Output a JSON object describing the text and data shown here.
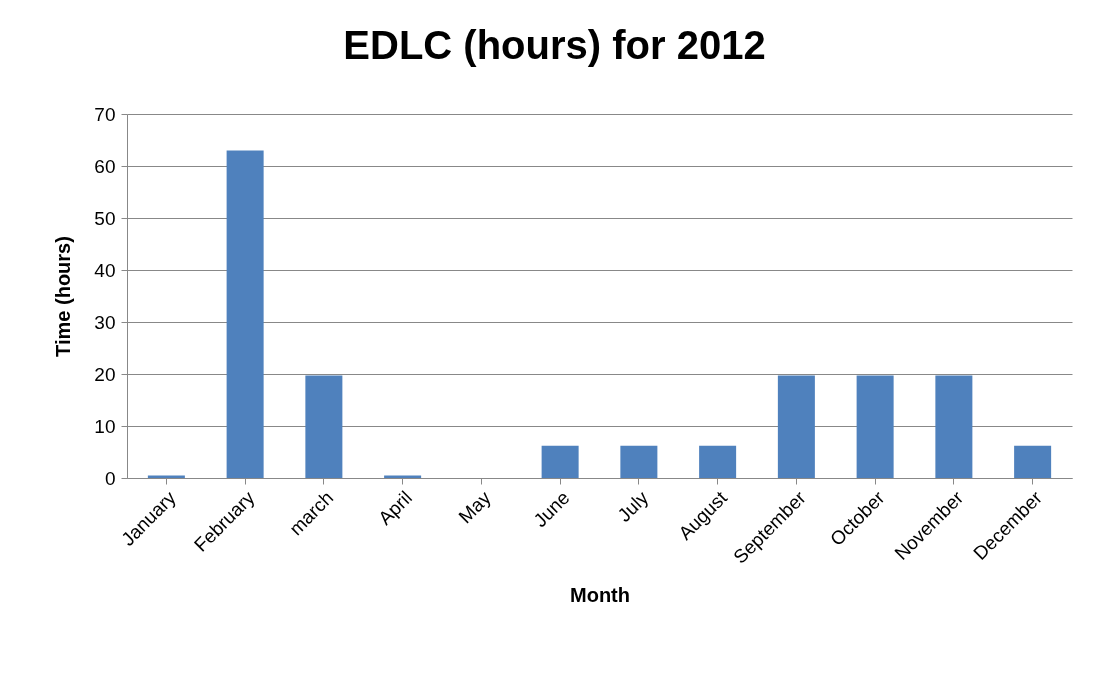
{
  "chart_data": {
    "type": "bar",
    "title": "EDLC (hours) for 2012",
    "xlabel": "Month",
    "ylabel": "Time (hours)",
    "categories": [
      "January",
      "February",
      "march",
      "April",
      "May",
      "June",
      "July",
      "August",
      "September",
      "October",
      "November",
      "December"
    ],
    "values": [
      0.5,
      63,
      19.7,
      0.5,
      0,
      6.2,
      6.2,
      6.2,
      19.7,
      19.7,
      19.7,
      6.2
    ],
    "color": "#4f81bd",
    "ylim": [
      0,
      70
    ],
    "yticks": [
      0,
      10,
      20,
      30,
      40,
      50,
      60,
      70
    ],
    "grid": "y"
  }
}
